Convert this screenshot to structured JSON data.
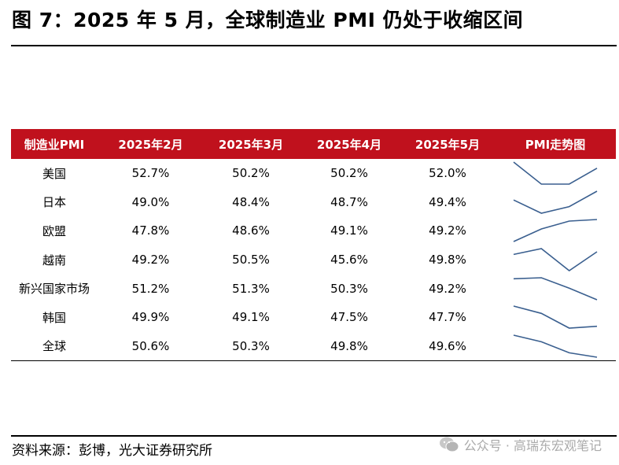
{
  "title": "图 7：2025 年 5 月，全球制造业 PMI 仍处于收缩区间",
  "table": {
    "headers": [
      "制造业PMI",
      "2025年2月",
      "2025年3月",
      "2025年4月",
      "2025年5月",
      "PMI走势图"
    ],
    "rows": [
      {
        "region": "美国",
        "values": [
          "52.7%",
          "50.2%",
          "50.2%",
          "52.0%"
        ],
        "trend": [
          52.7,
          50.2,
          50.2,
          52.0
        ]
      },
      {
        "region": "日本",
        "values": [
          "49.0%",
          "48.4%",
          "48.7%",
          "49.4%"
        ],
        "trend": [
          49.0,
          48.4,
          48.7,
          49.4
        ]
      },
      {
        "region": "欧盟",
        "values": [
          "47.8%",
          "48.6%",
          "49.1%",
          "49.2%"
        ],
        "trend": [
          47.8,
          48.6,
          49.1,
          49.2
        ]
      },
      {
        "region": "越南",
        "values": [
          "49.2%",
          "50.5%",
          "45.6%",
          "49.8%"
        ],
        "trend": [
          49.2,
          50.5,
          45.6,
          49.8
        ]
      },
      {
        "region": "新兴国家市场",
        "values": [
          "51.2%",
          "51.3%",
          "50.3%",
          "49.2%"
        ],
        "trend": [
          51.2,
          51.3,
          50.3,
          49.2
        ]
      },
      {
        "region": "韩国",
        "values": [
          "49.9%",
          "49.1%",
          "47.5%",
          "47.7%"
        ],
        "trend": [
          49.9,
          49.1,
          47.5,
          47.7
        ]
      },
      {
        "region": "全球",
        "values": [
          "50.6%",
          "50.3%",
          "49.8%",
          "49.6%"
        ],
        "trend": [
          50.6,
          50.3,
          49.8,
          49.6
        ]
      }
    ]
  },
  "source": "资料来源：彭博，光大证券研究所",
  "watermark": "公众号 · 高瑞东宏观笔记",
  "colors": {
    "header_bg": "#c0111d",
    "sparkline": "#3a5f8f"
  }
}
